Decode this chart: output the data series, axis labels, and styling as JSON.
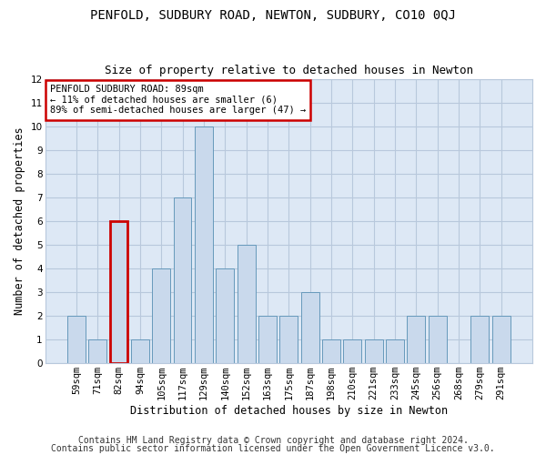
{
  "title": "PENFOLD, SUDBURY ROAD, NEWTON, SUDBURY, CO10 0QJ",
  "subtitle": "Size of property relative to detached houses in Newton",
  "xlabel": "Distribution of detached houses by size in Newton",
  "ylabel": "Number of detached properties",
  "categories": [
    "59sqm",
    "71sqm",
    "82sqm",
    "94sqm",
    "105sqm",
    "117sqm",
    "129sqm",
    "140sqm",
    "152sqm",
    "163sqm",
    "175sqm",
    "187sqm",
    "198sqm",
    "210sqm",
    "221sqm",
    "233sqm",
    "245sqm",
    "256sqm",
    "268sqm",
    "279sqm",
    "291sqm"
  ],
  "values": [
    2,
    1,
    6,
    1,
    4,
    7,
    10,
    4,
    5,
    2,
    2,
    3,
    1,
    1,
    1,
    1,
    2,
    2,
    0,
    2,
    2
  ],
  "bar_color": "#c9d9ec",
  "bar_edge_color": "#6699bb",
  "highlight_index": 2,
  "highlight_edge_color": "#cc0000",
  "annotation_text": "PENFOLD SUDBURY ROAD: 89sqm\n← 11% of detached houses are smaller (6)\n89% of semi-detached houses are larger (47) →",
  "annotation_box_edge": "#cc0000",
  "ylim": [
    0,
    12
  ],
  "yticks": [
    0,
    1,
    2,
    3,
    4,
    5,
    6,
    7,
    8,
    9,
    10,
    11,
    12
  ],
  "footer1": "Contains HM Land Registry data © Crown copyright and database right 2024.",
  "footer2": "Contains public sector information licensed under the Open Government Licence v3.0.",
  "bg_color": "#ffffff",
  "plot_bg_color": "#dde8f5",
  "grid_color": "#b8c8dc",
  "title_fontsize": 10,
  "subtitle_fontsize": 9,
  "axis_label_fontsize": 8.5,
  "tick_fontsize": 7.5,
  "annotation_fontsize": 7.5,
  "footer_fontsize": 7
}
